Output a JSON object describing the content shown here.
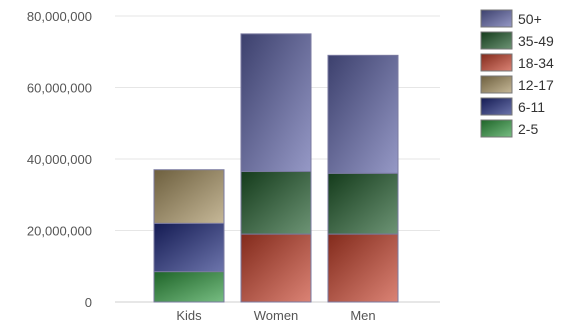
{
  "chart_data": {
    "type": "bar",
    "stacked": true,
    "categories": [
      "Kids",
      "Women",
      "Men"
    ],
    "series": [
      {
        "name": "2-5",
        "values": [
          8500000,
          0,
          0
        ],
        "color": "#2e9a3e"
      },
      {
        "name": "6-11",
        "values": [
          13500000,
          0,
          0
        ],
        "color": "#1f2a80"
      },
      {
        "name": "12-17",
        "values": [
          15000000,
          0,
          0
        ],
        "color": "#a89260"
      },
      {
        "name": "18-34",
        "values": [
          0,
          19000000,
          19000000
        ],
        "color": "#c8402a"
      },
      {
        "name": "35-49",
        "values": [
          0,
          17500000,
          17000000
        ],
        "color": "#1f5a2a"
      },
      {
        "name": "50+",
        "values": [
          0,
          38500000,
          33000000
        ],
        "color": "#5d62a8"
      }
    ],
    "y_ticks": [
      "0",
      "20,000,000",
      "40,000,000",
      "60,000,000",
      "80,000,000"
    ],
    "ylim": [
      0,
      80000000
    ],
    "grid": true,
    "legend_position": "right",
    "legend_order": [
      "50+",
      "35-49",
      "18-34",
      "12-17",
      "6-11",
      "2-5"
    ]
  }
}
